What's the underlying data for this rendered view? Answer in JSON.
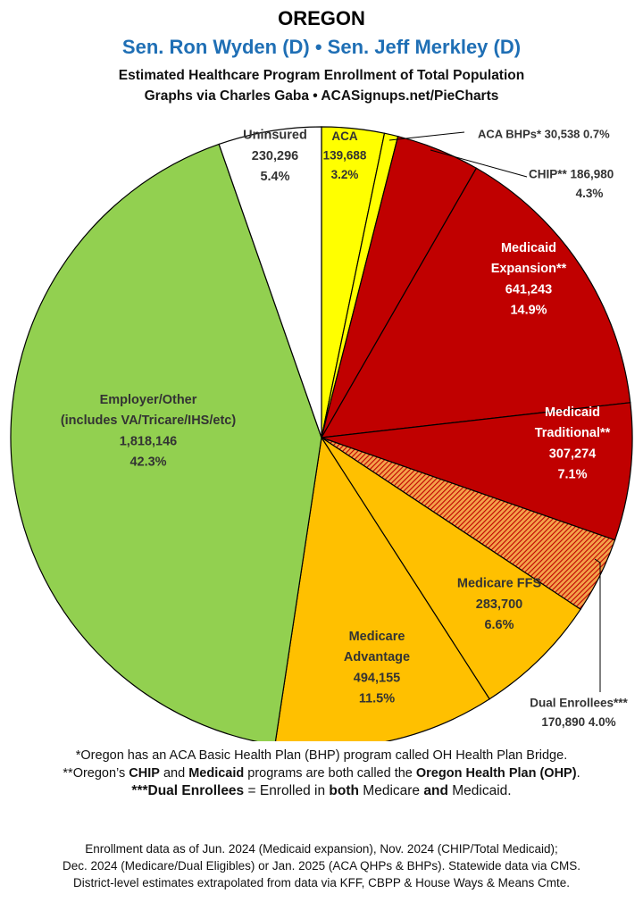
{
  "header": {
    "title": "OREGON",
    "senators": "Sen. Ron Wyden (D) • Sen. Jeff Merkley (D)",
    "subtitle": "Estimated Healthcare Program Enrollment of Total Population",
    "credits": "Graphs via Charles Gaba   •   ACASignups.net/PieCharts"
  },
  "chart_data": {
    "type": "pie",
    "start": "12 o'clock, clockwise",
    "slices": [
      {
        "key": "aca",
        "name": [
          "ACA"
        ],
        "value": 139688,
        "value_label": "139,688",
        "percent_label": "3.2%",
        "color": "#ffff00",
        "label_color": "#333333",
        "outside": false
      },
      {
        "key": "aca_bhp",
        "name": [
          "ACA BHPs*"
        ],
        "value": 30538,
        "value_label": "30,538",
        "percent_label": "0.7%",
        "color": "#ffff00",
        "label_color": "#333333",
        "outside": true
      },
      {
        "key": "chip",
        "name": [
          "CHIP**"
        ],
        "value": 186980,
        "value_label": "186,980",
        "percent_label": "4.3%",
        "color": "#c00000",
        "label_color": "#333333",
        "outside": true
      },
      {
        "key": "medicaid_exp",
        "name": [
          "Medicaid",
          "Expansion**"
        ],
        "value": 641243,
        "value_label": "641,243",
        "percent_label": "14.9%",
        "color": "#c00000",
        "label_color": "#ffffff",
        "outside": false
      },
      {
        "key": "medicaid_trad",
        "name": [
          "Medicaid",
          "Traditional**"
        ],
        "value": 307274,
        "value_label": "307,274",
        "percent_label": "7.1%",
        "color": "#c00000",
        "label_color": "#ffffff",
        "outside": false
      },
      {
        "key": "dual",
        "name": [
          "Dual Enrollees***"
        ],
        "value": 170890,
        "value_label": "170,890",
        "percent_label": "4.0%",
        "color": "#e46c0a",
        "pattern": "hatch",
        "label_color": "#333333",
        "outside": true
      },
      {
        "key": "medicare_ffs",
        "name": [
          "Medicare FFS"
        ],
        "value": 283700,
        "value_label": "283,700",
        "percent_label": "6.6%",
        "color": "#ffc000",
        "label_color": "#333333",
        "outside": false
      },
      {
        "key": "medicare_adv",
        "name": [
          "Medicare",
          "Advantage"
        ],
        "value": 494155,
        "value_label": "494,155",
        "percent_label": "11.5%",
        "color": "#ffc000",
        "label_color": "#333333",
        "outside": false
      },
      {
        "key": "employer",
        "name": [
          "Employer/Other",
          "(includes VA/Tricare/IHS/etc)"
        ],
        "value": 1818146,
        "value_label": "1,818,146",
        "percent_label": "42.3%",
        "color": "#92d050",
        "label_color": "#333333",
        "outside": false
      },
      {
        "key": "uninsured",
        "name": [
          "Uninsured"
        ],
        "value": 230296,
        "value_label": "230,296",
        "percent_label": "5.4%",
        "color": "#ffffff",
        "label_color": "#333333",
        "outside": false
      }
    ]
  },
  "notes": {
    "line1": "*Oregon has an ACA Basic Health Plan (BHP) program called OH Health Plan Bridge.",
    "line2_pre": "**Oregon’s ",
    "line2_chip": "CHIP",
    "line2_mid": " and ",
    "line2_medicaid": "Medicaid",
    "line2_mid2": " programs are both called the ",
    "line2_ohp": "Oregon Health Plan (OHP)",
    "line2_end": ".",
    "line3_bold": "***Dual Enrollees",
    "line3_mid": " = Enrolled in ",
    "line3_both": "both",
    "line3_mid2": " Medicare ",
    "line3_and": "and",
    "line3_end": " Medicaid.",
    "source1": "Enrollment data as of Jun. 2024 (Medicaid expansion), Nov. 2024 (CHIP/Total Medicaid);",
    "source2": "Dec. 2024 (Medicare/Dual Eligibles) or Jan. 2025 (ACA QHPs & BHPs). Statewide data via CMS.",
    "source3": "District-level estimates extrapolated from data via KFF, CBPP & House Ways & Means Cmte."
  }
}
